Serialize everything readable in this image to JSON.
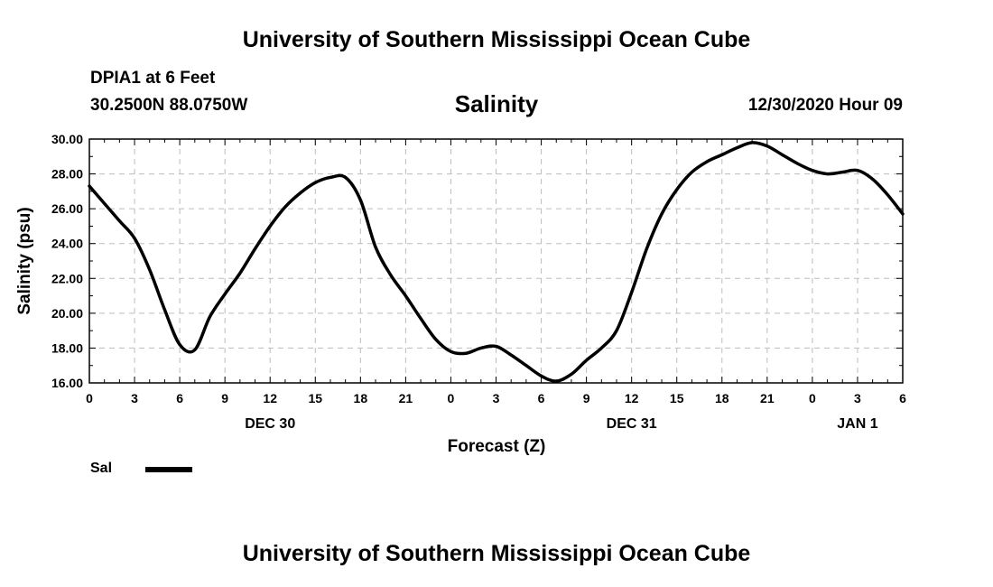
{
  "header": {
    "title": "University of Southern Mississippi Ocean Cube",
    "station": "DPIA1 at 6 Feet",
    "coordinates": "30.2500N 88.0750W",
    "timestamp": "12/30/2020 Hour 09"
  },
  "footer": {
    "title": "University of Southern Mississippi Ocean Cube"
  },
  "legend": {
    "label": "Sal",
    "color": "#000000"
  },
  "chart_data": {
    "type": "line",
    "title": "Salinity",
    "xlabel": "Forecast (Z)",
    "ylabel": "Salinity (psu)",
    "xlim": [
      0,
      54
    ],
    "ylim": [
      16,
      30
    ],
    "grid": true,
    "x_ticks": [
      0,
      3,
      6,
      9,
      12,
      15,
      18,
      21,
      24,
      27,
      30,
      33,
      36,
      39,
      42,
      45,
      48,
      51,
      54
    ],
    "x_tick_labels": [
      "0",
      "3",
      "6",
      "9",
      "12",
      "15",
      "18",
      "21",
      "0",
      "3",
      "6",
      "9",
      "12",
      "15",
      "18",
      "21",
      "0",
      "3",
      "6"
    ],
    "y_ticks": [
      16,
      18,
      20,
      22,
      24,
      26,
      28,
      30
    ],
    "y_tick_labels": [
      "16.00",
      "18.00",
      "20.00",
      "22.00",
      "24.00",
      "26.00",
      "28.00",
      "30.00"
    ],
    "date_labels": [
      {
        "x": 12,
        "label": "DEC 30"
      },
      {
        "x": 36,
        "label": "DEC 31"
      },
      {
        "x": 51,
        "label": "JAN 1"
      }
    ],
    "series": [
      {
        "name": "Sal",
        "color": "#000000",
        "x": [
          0,
          1,
          2,
          3,
          4,
          5,
          6,
          7,
          8,
          9,
          10,
          11,
          12,
          13,
          14,
          15,
          16,
          17,
          18,
          19,
          20,
          21,
          22,
          23,
          24,
          25,
          26,
          27,
          28,
          29,
          30,
          31,
          32,
          33,
          34,
          35,
          36,
          37,
          38,
          39,
          40,
          41,
          42,
          43,
          44,
          45,
          46,
          47,
          48,
          49,
          50,
          51,
          52,
          53,
          54
        ],
        "values": [
          27.3,
          26.3,
          25.3,
          24.3,
          22.5,
          20.2,
          18.2,
          17.9,
          19.8,
          21.1,
          22.3,
          23.7,
          25.0,
          26.1,
          26.9,
          27.5,
          27.8,
          27.8,
          26.5,
          23.8,
          22.2,
          21.0,
          19.7,
          18.5,
          17.8,
          17.7,
          18.0,
          18.1,
          17.6,
          17.0,
          16.4,
          16.1,
          16.5,
          17.3,
          18.0,
          19.0,
          21.2,
          23.7,
          25.7,
          27.1,
          28.1,
          28.7,
          29.1,
          29.5,
          29.8,
          29.6,
          29.1,
          28.6,
          28.2,
          28.0,
          28.1,
          28.2,
          27.7,
          26.8,
          25.7
        ]
      }
    ]
  }
}
